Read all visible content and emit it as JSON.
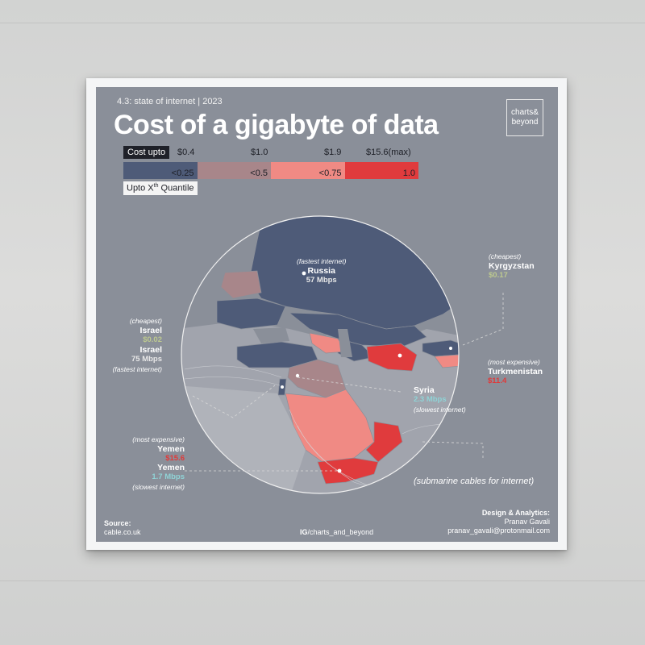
{
  "poster": {
    "subtitle": "4.3: state of internet | 2023",
    "title": "Cost of a gigabyte of data",
    "brand_line1": "charts&",
    "brand_line2": "beyond"
  },
  "legend": {
    "cost_label": "Cost upto",
    "cost_ticks": [
      "$0.4",
      "$1.0",
      "$1.9",
      "$15.6(max)"
    ],
    "quantile_bins": [
      {
        "label": "<0.25",
        "color": "#4e5b78"
      },
      {
        "label": "<0.5",
        "color": "#a8868a"
      },
      {
        "label": "<0.75",
        "color": "#f08a84"
      },
      {
        "label": "1.0",
        "color": "#e03b3d"
      }
    ],
    "quantile_prefix": "Upto X",
    "quantile_sup": "th",
    "quantile_suffix": " Quantile"
  },
  "annotations": {
    "russia": {
      "note": "(fastest internet)",
      "name": "Russia",
      "value": "57 Mbps"
    },
    "kyrgyzstan": {
      "note": "(cheapest)",
      "name": "Kyrgyzstan",
      "value": "$0.17"
    },
    "israel_cost": {
      "note": "(cheapest)",
      "name": "Israel",
      "value": "$0.02"
    },
    "israel_speed": {
      "name": "Israel",
      "value": "75 Mbps",
      "note": "(fastest internet)"
    },
    "turkmenistan": {
      "note": "(most expensive)",
      "name": "Turkmenistan",
      "value": "$11.4"
    },
    "syria": {
      "name": "Syria",
      "value": "2.3 Mbps",
      "note": "(slowest internet)"
    },
    "yemen_cost": {
      "note": "(most expensive)",
      "name": "Yemen",
      "value": "$15.6"
    },
    "yemen_speed": {
      "name": "Yemen",
      "value": "1.7 Mbps",
      "note": "(slowest internet)"
    },
    "cables": "(submarine cables for internet)"
  },
  "footer": {
    "source_label": "Source:",
    "source_value": "cable.co.uk",
    "ig_prefix": "IG",
    "ig_handle": "/charts_and_beyond",
    "credit_label": "Design & Analytics:",
    "credit_name": "Pranav Gavali",
    "credit_email": "pranav_gavali@protonmail.com"
  },
  "colors": {
    "background": "#8a8f99",
    "q1": "#4e5b78",
    "q2": "#a8868a",
    "q3": "#f08a84",
    "q4": "#e03b3d",
    "no_data": "#b4b7bd"
  }
}
